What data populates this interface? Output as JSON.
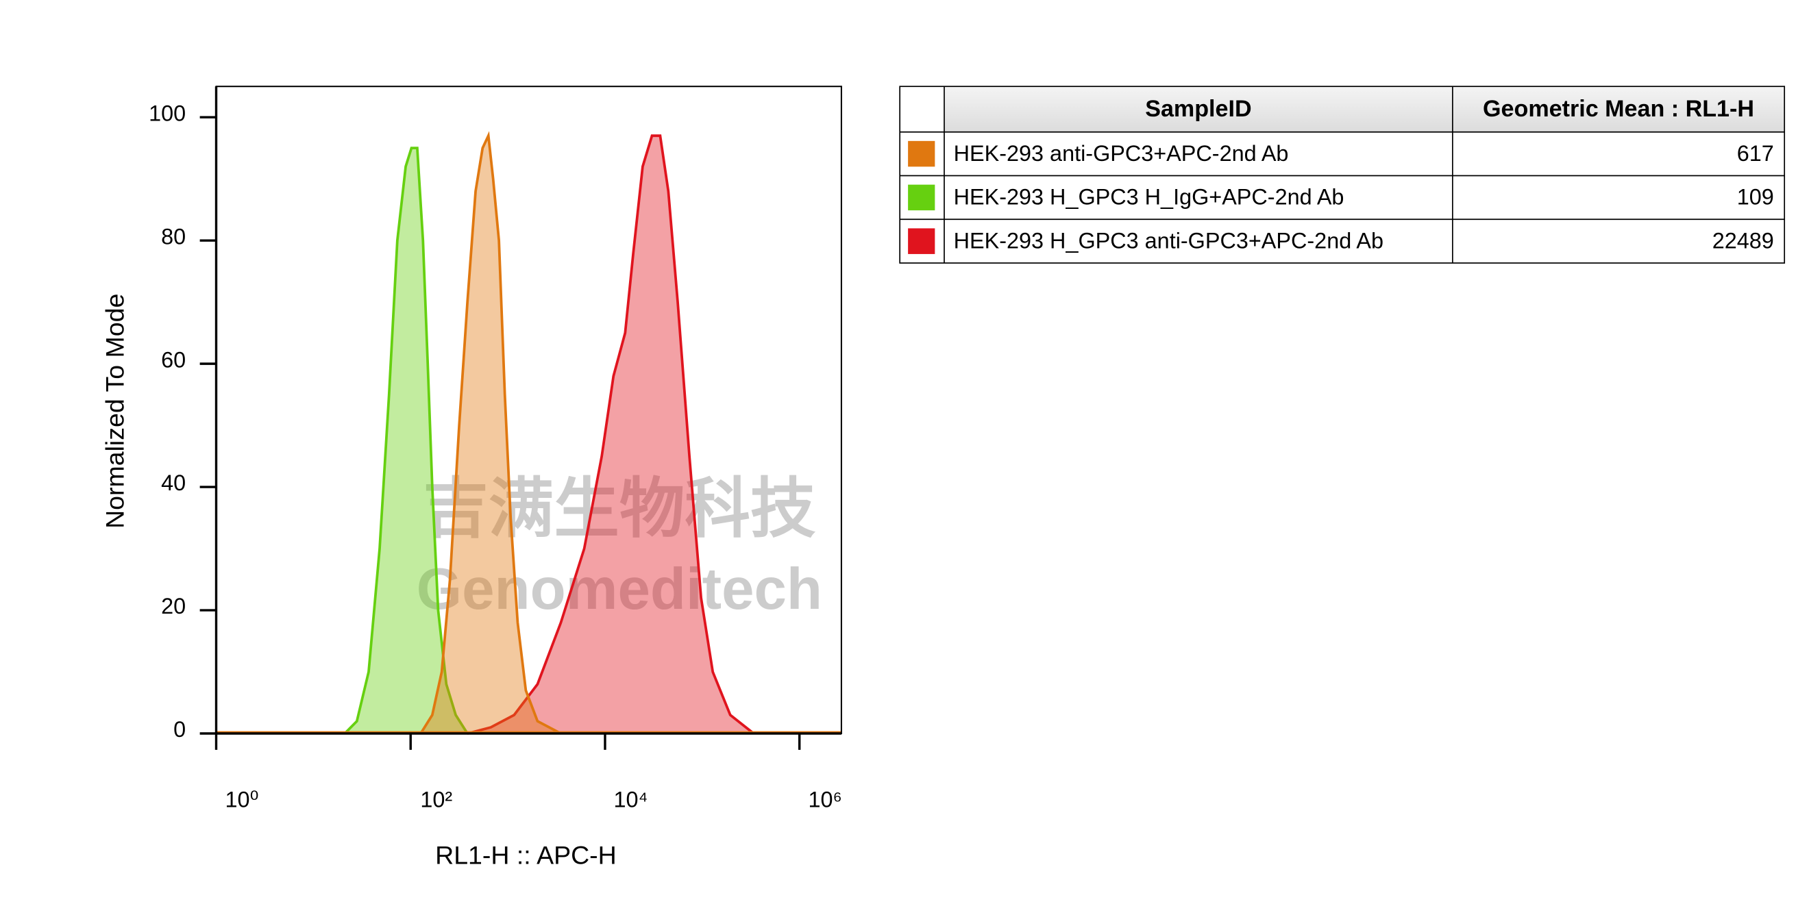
{
  "chart_data": {
    "type": "histogram-overlay",
    "x_label": "RL1-H :: APC-H",
    "y_label": "Normalized To Mode",
    "xscale": "log",
    "xlim": [
      1,
      2700000
    ],
    "xticks": [
      {
        "value": 1,
        "label": "10⁰"
      },
      {
        "value": 100,
        "label": "10²"
      },
      {
        "value": 10000,
        "label": "10⁴"
      },
      {
        "value": 1000000,
        "label": "10⁶"
      }
    ],
    "ylim": [
      0,
      105
    ],
    "yticks": [
      0,
      20,
      40,
      60,
      80,
      100
    ],
    "legend_headers": [
      "SampleID",
      "Geometric Mean : RL1-H"
    ],
    "watermark": [
      "吉满生物科技",
      "Genomeditech"
    ],
    "series": [
      {
        "name": "HEK-293 anti-GPC3+APC-2nd Ab",
        "color": "#e07810",
        "geometric_mean": 617,
        "x": [
          127,
          167,
          209,
          254,
          316,
          384,
          466,
          550,
          631,
          706,
          810,
          931,
          1069,
          1262,
          1531,
          2020,
          3513
        ],
        "values": [
          0,
          3,
          10,
          25,
          50,
          70,
          88,
          95,
          97,
          90,
          80,
          55,
          35,
          18,
          7,
          2,
          0
        ]
      },
      {
        "name": "HEK-293 H_GPC3 H_IgG+APC-2nd Ab",
        "color": "#66d010",
        "geometric_mean": 109,
        "x": [
          21,
          28,
          37,
          48,
          60,
          73,
          89,
          102,
          117,
          134,
          150,
          167,
          192,
          233,
          291,
          384
        ],
        "values": [
          0,
          2,
          10,
          30,
          55,
          80,
          92,
          95,
          95,
          80,
          60,
          40,
          20,
          8,
          3,
          0
        ]
      },
      {
        "name": "HEK-293 H_GPC3 anti-GPC3+APC-2nd Ab",
        "color": "#e0141e",
        "geometric_mean": 22489,
        "x": [
          384,
          668,
          1161,
          2020,
          3513,
          6109,
          9253,
          12210,
          16100,
          19530,
          24380,
          30410,
          36900,
          44770,
          55920,
          73770,
          97280,
          128300,
          194100,
          338000
        ],
        "values": [
          0,
          1,
          3,
          8,
          18,
          30,
          45,
          58,
          65,
          78,
          92,
          97,
          97,
          88,
          70,
          45,
          22,
          10,
          3,
          0
        ]
      }
    ]
  }
}
